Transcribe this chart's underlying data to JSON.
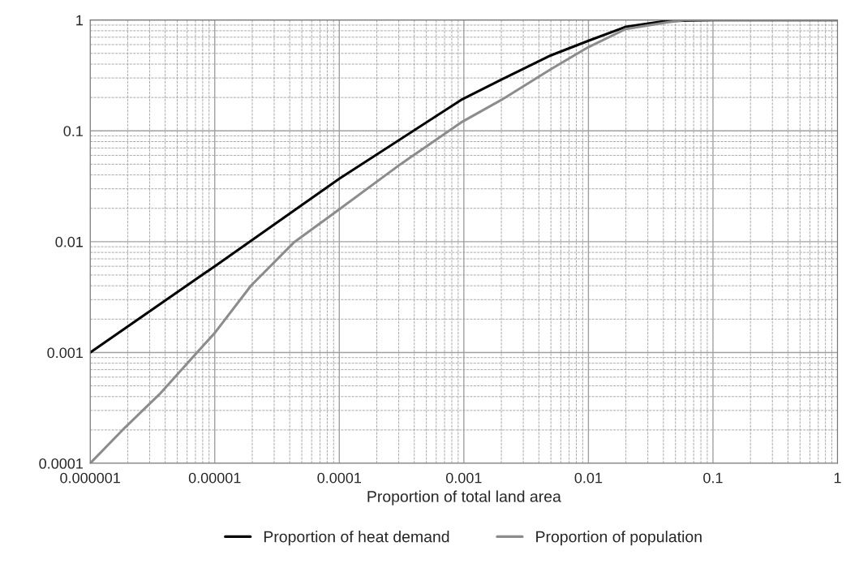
{
  "chart_data": {
    "type": "line",
    "xlabel": "Proportion of total land area",
    "log": "xy",
    "grid": true,
    "legend": "bottom",
    "xlim": [
      1e-06,
      1
    ],
    "ylim": [
      0.0001,
      1
    ],
    "xticks": [
      {
        "value": 1e-06,
        "label": "0.000001"
      },
      {
        "value": 1e-05,
        "label": "0.00001"
      },
      {
        "value": 0.0001,
        "label": "0.0001"
      },
      {
        "value": 0.001,
        "label": "0.001"
      },
      {
        "value": 0.01,
        "label": "0.01"
      },
      {
        "value": 0.1,
        "label": "0.1"
      },
      1
    ],
    "yticks": [
      {
        "value": 0.0001,
        "label": "0.0001"
      },
      {
        "value": 0.001,
        "label": "0.001"
      },
      {
        "value": 0.01,
        "label": "0.01"
      },
      {
        "value": 0.1,
        "label": "0.1"
      },
      1
    ],
    "series": [
      {
        "name": "Proportion of heat demand",
        "color": "#000000",
        "x": [
          1e-06,
          1e-05,
          0.0001,
          0.00095,
          0.002,
          0.005,
          0.01,
          0.02,
          0.042,
          0.1,
          1
        ],
        "values": [
          0.001,
          0.006,
          0.037,
          0.19,
          0.29,
          0.48,
          0.65,
          0.87,
          0.98,
          1,
          1
        ]
      },
      {
        "name": "Proportion of population",
        "color": "#8c8c8c",
        "x": [
          1e-06,
          1.9e-06,
          3.6e-06,
          7.6e-06,
          1e-05,
          1.95e-05,
          4.3e-05,
          0.0001,
          0.00031,
          0.00072,
          0.00095,
          0.002,
          0.005,
          0.01,
          0.02,
          0.042,
          0.059,
          0.1,
          1
        ],
        "values": [
          0.0001,
          0.00021,
          0.00042,
          0.00107,
          0.0015,
          0.004,
          0.0098,
          0.0196,
          0.05,
          0.096,
          0.119,
          0.19,
          0.36,
          0.57,
          0.83,
          0.95,
          1,
          1,
          1
        ]
      }
    ]
  }
}
